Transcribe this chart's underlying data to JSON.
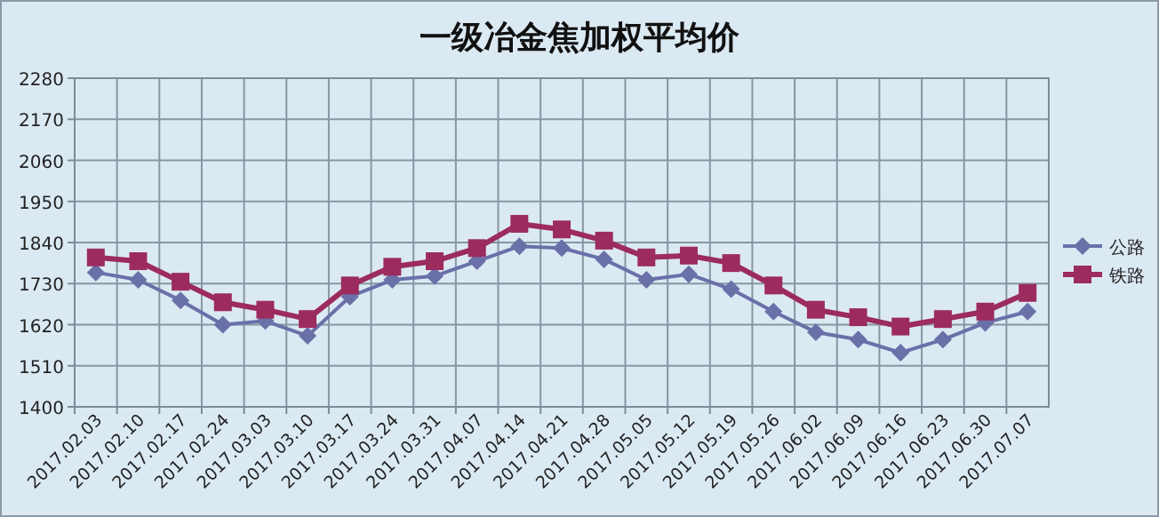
{
  "chart_data": {
    "type": "line",
    "title": "一级冶金焦加权平均价",
    "categories": [
      "2017.02.03",
      "2017.02.10",
      "2017.02.17",
      "2017.02.24",
      "2017.03.03",
      "2017.03.10",
      "2017.03.17",
      "2017.03.24",
      "2017.03.31",
      "2017.04.07",
      "2017.04.14",
      "2017.04.21",
      "2017.04.28",
      "2017.05.05",
      "2017.05.12",
      "2017.05.19",
      "2017.05.26",
      "2017.06.02",
      "2017.06.09",
      "2017.06.16",
      "2017.06.23",
      "2017.06.30",
      "2017.07.07"
    ],
    "series": [
      {
        "name": "公路",
        "color": "#6a70a8",
        "marker": "diamond",
        "values": [
          1760,
          1740,
          1685,
          1620,
          1630,
          1590,
          1695,
          1740,
          1750,
          1790,
          1830,
          1825,
          1795,
          1740,
          1755,
          1715,
          1655,
          1600,
          1580,
          1545,
          1580,
          1625,
          1655
        ]
      },
      {
        "name": "铁路",
        "color": "#9c2b5e",
        "marker": "square",
        "values": [
          1800,
          1790,
          1735,
          1680,
          1660,
          1635,
          1725,
          1775,
          1790,
          1825,
          1890,
          1875,
          1845,
          1800,
          1805,
          1785,
          1725,
          1660,
          1640,
          1615,
          1635,
          1655,
          1705
        ]
      }
    ],
    "ylim": [
      1400,
      2280
    ],
    "yticks": [
      1400,
      1510,
      1620,
      1730,
      1840,
      1950,
      2060,
      2170,
      2280
    ],
    "grid": true,
    "legend": "right"
  }
}
